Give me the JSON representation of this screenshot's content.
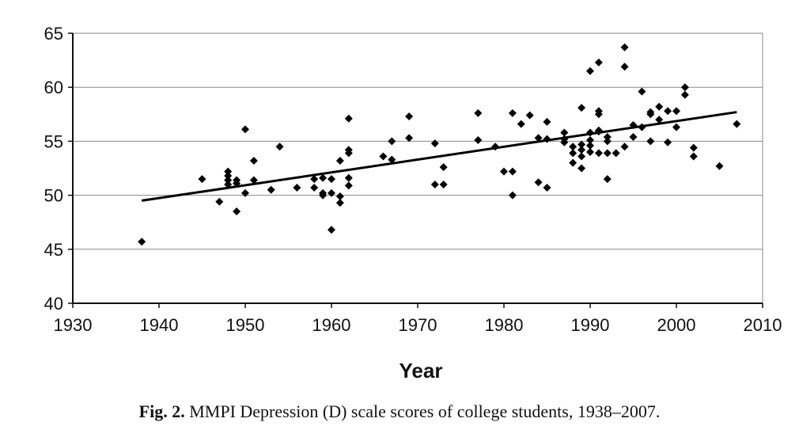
{
  "caption": {
    "label": "Fig. 2.",
    "text": "MMPI Depression (D) scale scores of college students, 1938–2007."
  },
  "chart_data": {
    "type": "scatter",
    "title": "",
    "xlabel": "Year",
    "ylabel": "",
    "xlim": [
      1930,
      2010
    ],
    "ylim": [
      40,
      65
    ],
    "xticks": [
      1930,
      1940,
      1950,
      1960,
      1970,
      1980,
      1990,
      2000,
      2010
    ],
    "yticks": [
      40,
      45,
      50,
      55,
      60,
      65
    ],
    "grid": "horizontal",
    "marker": "diamond",
    "trendline": {
      "type": "linear",
      "x": [
        1938,
        2007
      ],
      "y": [
        49.5,
        57.7
      ]
    },
    "points": [
      [
        1938,
        45.7
      ],
      [
        1945,
        51.5
      ],
      [
        1947,
        49.4
      ],
      [
        1948,
        52.2
      ],
      [
        1948,
        51.8
      ],
      [
        1948,
        51.4
      ],
      [
        1948,
        51.0
      ],
      [
        1949,
        51.4
      ],
      [
        1949,
        51.1
      ],
      [
        1949,
        48.5
      ],
      [
        1950,
        56.1
      ],
      [
        1950,
        50.2
      ],
      [
        1951,
        53.2
      ],
      [
        1951,
        51.4
      ],
      [
        1953,
        50.5
      ],
      [
        1954,
        54.5
      ],
      [
        1956,
        50.7
      ],
      [
        1958,
        51.5
      ],
      [
        1958,
        50.7
      ],
      [
        1959,
        51.6
      ],
      [
        1959,
        50.2
      ],
      [
        1959,
        50.0
      ],
      [
        1960,
        51.5
      ],
      [
        1960,
        50.2
      ],
      [
        1960,
        46.8
      ],
      [
        1961,
        53.2
      ],
      [
        1961,
        49.9
      ],
      [
        1961,
        49.3
      ],
      [
        1962,
        57.1
      ],
      [
        1962,
        54.2
      ],
      [
        1962,
        53.9
      ],
      [
        1962,
        51.6
      ],
      [
        1962,
        50.9
      ],
      [
        1966,
        53.6
      ],
      [
        1967,
        55.0
      ],
      [
        1967,
        53.3
      ],
      [
        1969,
        57.3
      ],
      [
        1969,
        55.3
      ],
      [
        1972,
        54.8
      ],
      [
        1972,
        51.0
      ],
      [
        1973,
        52.6
      ],
      [
        1973,
        51.0
      ],
      [
        1977,
        57.6
      ],
      [
        1977,
        55.1
      ],
      [
        1979,
        54.5
      ],
      [
        1980,
        52.2
      ],
      [
        1981,
        57.6
      ],
      [
        1981,
        52.2
      ],
      [
        1981,
        50.0
      ],
      [
        1982,
        56.6
      ],
      [
        1983,
        57.4
      ],
      [
        1984,
        55.3
      ],
      [
        1984,
        51.2
      ],
      [
        1985,
        56.8
      ],
      [
        1985,
        55.2
      ],
      [
        1985,
        50.7
      ],
      [
        1987,
        55.8
      ],
      [
        1987,
        55.2
      ],
      [
        1987,
        54.9
      ],
      [
        1988,
        54.5
      ],
      [
        1988,
        53.9
      ],
      [
        1988,
        53.0
      ],
      [
        1989,
        58.1
      ],
      [
        1989,
        54.7
      ],
      [
        1989,
        54.2
      ],
      [
        1989,
        53.6
      ],
      [
        1989,
        52.5
      ],
      [
        1990,
        61.5
      ],
      [
        1990,
        55.8
      ],
      [
        1990,
        55.1
      ],
      [
        1990,
        54.6
      ],
      [
        1990,
        54.0
      ],
      [
        1991,
        62.3
      ],
      [
        1991,
        57.8
      ],
      [
        1991,
        57.5
      ],
      [
        1991,
        56.0
      ],
      [
        1991,
        55.9
      ],
      [
        1991,
        53.9
      ],
      [
        1992,
        55.4
      ],
      [
        1992,
        55.0
      ],
      [
        1992,
        53.9
      ],
      [
        1992,
        51.5
      ],
      [
        1993,
        53.9
      ],
      [
        1994,
        63.7
      ],
      [
        1994,
        61.9
      ],
      [
        1994,
        54.5
      ],
      [
        1995,
        56.5
      ],
      [
        1995,
        55.4
      ],
      [
        1996,
        59.6
      ],
      [
        1996,
        56.3
      ],
      [
        1997,
        57.7
      ],
      [
        1997,
        57.5
      ],
      [
        1997,
        55.0
      ],
      [
        1998,
        58.2
      ],
      [
        1998,
        57.0
      ],
      [
        1999,
        57.8
      ],
      [
        1999,
        54.9
      ],
      [
        2000,
        57.8
      ],
      [
        2000,
        56.3
      ],
      [
        2001,
        60.0
      ],
      [
        2001,
        59.3
      ],
      [
        2002,
        54.4
      ],
      [
        2002,
        53.6
      ],
      [
        2005,
        52.7
      ],
      [
        2007,
        56.6
      ]
    ]
  }
}
